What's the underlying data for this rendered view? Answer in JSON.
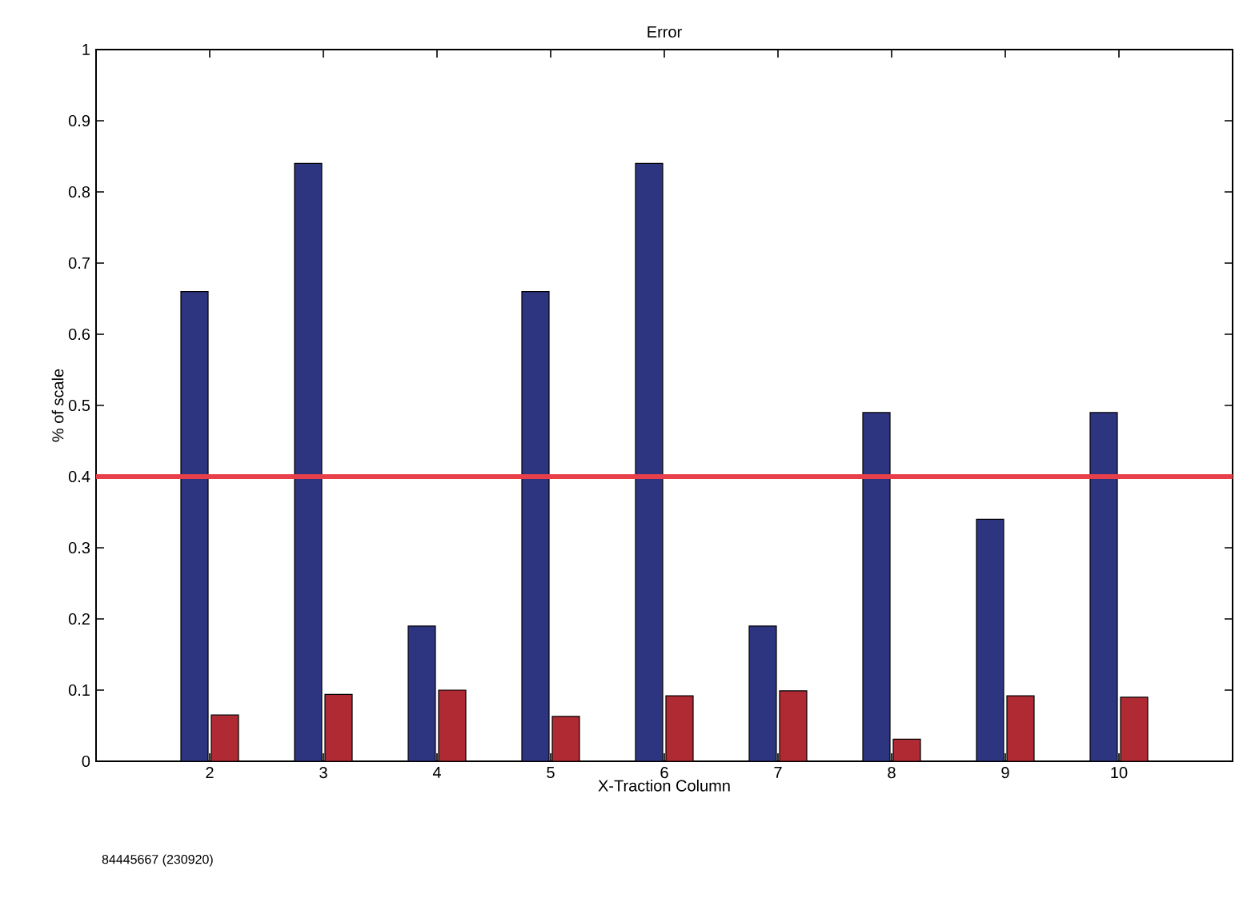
{
  "chart_data": {
    "type": "bar",
    "title": "Error",
    "xlabel": "X-Traction Column",
    "ylabel": "% of scale",
    "categories": [
      "2",
      "3",
      "4",
      "5",
      "6",
      "7",
      "8",
      "9",
      "10"
    ],
    "series": [
      {
        "color": "#2e3580",
        "values": [
          0.66,
          0.84,
          0.19,
          0.66,
          0.84,
          0.19,
          0.49,
          0.34,
          0.49
        ]
      },
      {
        "color": "#b02a33",
        "values": [
          0.065,
          0.094,
          0.1,
          0.063,
          0.092,
          0.099,
          0.031,
          0.092,
          0.09
        ]
      }
    ],
    "ylim": [
      0,
      1
    ],
    "yticks": [
      0,
      0.1,
      0.2,
      0.3,
      0.4,
      0.5,
      0.6,
      0.7,
      0.8,
      0.9,
      1
    ],
    "ref_lines": [
      {
        "axis": "y",
        "value": 0.4,
        "color": "#e8404a"
      }
    ],
    "annotations": [
      "84445667 (230920)"
    ]
  }
}
